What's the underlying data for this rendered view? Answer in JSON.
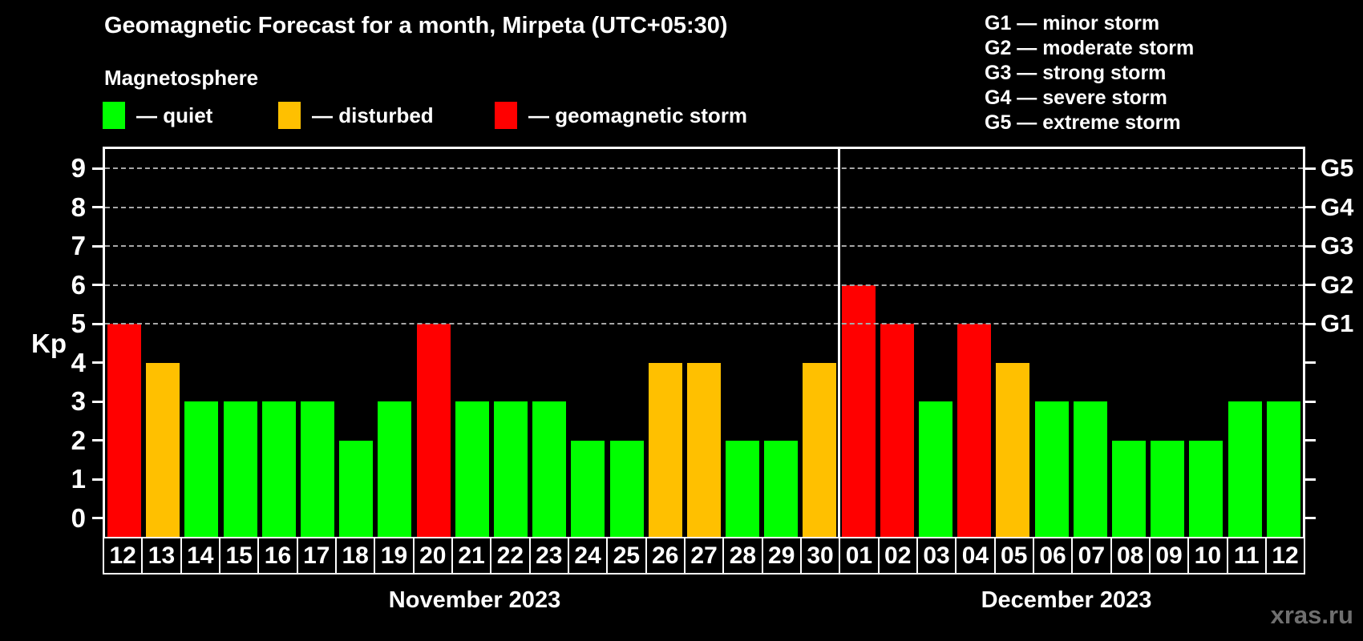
{
  "header": {
    "title": "Geomagnetic Forecast for a month, Mirpeta (UTC+05:30)",
    "subtitle": "Magnetosphere"
  },
  "legend": {
    "items": [
      {
        "name": "quiet",
        "label": "— quiet",
        "color": "#00ff00"
      },
      {
        "name": "disturbed",
        "label": "— disturbed",
        "color": "#ffc000"
      },
      {
        "name": "storm",
        "label": "— geomagnetic storm",
        "color": "#ff0000"
      }
    ]
  },
  "storm_scale": {
    "items": [
      {
        "code": "G1",
        "label": "G1 — minor storm",
        "kp": 5
      },
      {
        "code": "G2",
        "label": "G2 — moderate storm",
        "kp": 6
      },
      {
        "code": "G3",
        "label": "G3 — strong storm",
        "kp": 7
      },
      {
        "code": "G4",
        "label": "G4 — severe storm",
        "kp": 8
      },
      {
        "code": "G5",
        "label": "G5 — extreme storm",
        "kp": 9
      }
    ]
  },
  "watermark": "xras.ru",
  "chart_data": {
    "type": "bar",
    "title": "Geomagnetic Forecast for a month, Mirpeta (UTC+05:30)",
    "ylabel": "Kp",
    "ylim": [
      -0.5,
      9.5
    ],
    "yticks": [
      0,
      1,
      2,
      3,
      4,
      5,
      6,
      7,
      8,
      9
    ],
    "gridlines_at_kp": [
      5,
      6,
      7,
      8,
      9
    ],
    "grid": "dashed horizontal lines at storm levels only",
    "legend_position": "top-left",
    "right_axis_labels": [
      {
        "kp": 5,
        "label": "G1"
      },
      {
        "kp": 6,
        "label": "G2"
      },
      {
        "kp": 7,
        "label": "G3"
      },
      {
        "kp": 8,
        "label": "G4"
      },
      {
        "kp": 9,
        "label": "G5"
      }
    ],
    "status_colors": {
      "quiet": "#00ff00",
      "disturbed": "#ffc000",
      "storm": "#ff0000"
    },
    "months": [
      {
        "label": "November 2023",
        "days": [
          {
            "day": "12",
            "kp": 5,
            "status": "storm"
          },
          {
            "day": "13",
            "kp": 4,
            "status": "disturbed"
          },
          {
            "day": "14",
            "kp": 3,
            "status": "quiet"
          },
          {
            "day": "15",
            "kp": 3,
            "status": "quiet"
          },
          {
            "day": "16",
            "kp": 3,
            "status": "quiet"
          },
          {
            "day": "17",
            "kp": 3,
            "status": "quiet"
          },
          {
            "day": "18",
            "kp": 2,
            "status": "quiet"
          },
          {
            "day": "19",
            "kp": 3,
            "status": "quiet"
          },
          {
            "day": "20",
            "kp": 5,
            "status": "storm"
          },
          {
            "day": "21",
            "kp": 3,
            "status": "quiet"
          },
          {
            "day": "22",
            "kp": 3,
            "status": "quiet"
          },
          {
            "day": "23",
            "kp": 3,
            "status": "quiet"
          },
          {
            "day": "24",
            "kp": 2,
            "status": "quiet"
          },
          {
            "day": "25",
            "kp": 2,
            "status": "quiet"
          },
          {
            "day": "26",
            "kp": 4,
            "status": "disturbed"
          },
          {
            "day": "27",
            "kp": 4,
            "status": "disturbed"
          },
          {
            "day": "28",
            "kp": 2,
            "status": "quiet"
          },
          {
            "day": "29",
            "kp": 2,
            "status": "quiet"
          },
          {
            "day": "30",
            "kp": 4,
            "status": "disturbed"
          }
        ]
      },
      {
        "label": "December 2023",
        "days": [
          {
            "day": "01",
            "kp": 6,
            "status": "storm"
          },
          {
            "day": "02",
            "kp": 5,
            "status": "storm"
          },
          {
            "day": "03",
            "kp": 3,
            "status": "quiet"
          },
          {
            "day": "04",
            "kp": 5,
            "status": "storm"
          },
          {
            "day": "05",
            "kp": 4,
            "status": "disturbed"
          },
          {
            "day": "06",
            "kp": 3,
            "status": "quiet"
          },
          {
            "day": "07",
            "kp": 3,
            "status": "quiet"
          },
          {
            "day": "08",
            "kp": 2,
            "status": "quiet"
          },
          {
            "day": "09",
            "kp": 2,
            "status": "quiet"
          },
          {
            "day": "10",
            "kp": 2,
            "status": "quiet"
          },
          {
            "day": "11",
            "kp": 3,
            "status": "quiet"
          },
          {
            "day": "12",
            "kp": 3,
            "status": "quiet"
          }
        ]
      }
    ]
  }
}
